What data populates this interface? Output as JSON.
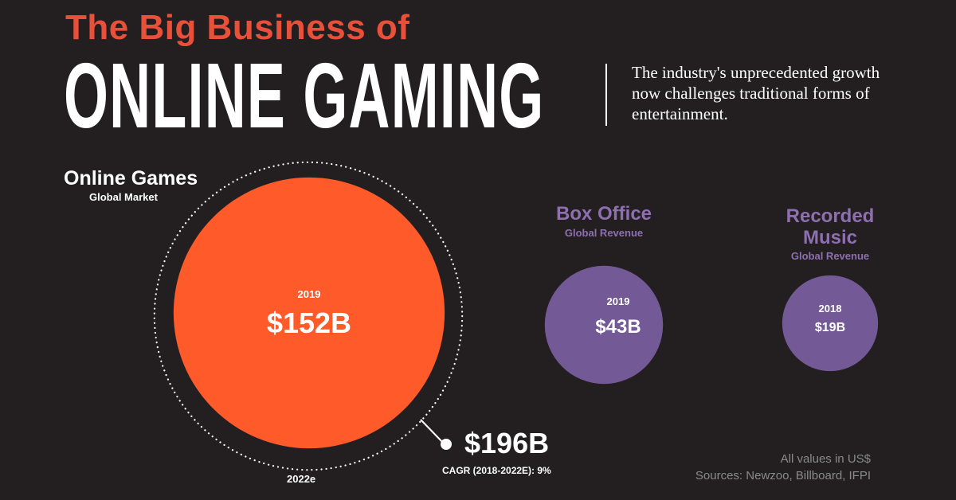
{
  "header": {
    "title_line1": "The Big Business of",
    "title_line2": "ONLINE GAMING",
    "subtitle": "The industry's unprecedented growth now challenges traditional forms of entertainment."
  },
  "colors": {
    "background": "#231f20",
    "orange": "#fe5a2a",
    "title_orange": "#e8503a",
    "purple": "#735a96",
    "purple_text": "#8e6fb0"
  },
  "chart_data": {
    "type": "scatter",
    "title": "The Big Business of ONLINE GAMING",
    "unit": "US$ billions",
    "series": [
      {
        "name": "Online Games",
        "subtitle": "Global Market",
        "year": "2019",
        "value": 152,
        "label": "$152B",
        "color": "#fe5a2a"
      },
      {
        "name": "Box Office",
        "subtitle": "Global Revenue",
        "year": "2019",
        "value": 43,
        "label": "$43B",
        "color": "#735a96"
      },
      {
        "name": "Recorded Music",
        "subtitle": "Global Revenue",
        "year": "2018",
        "value": 19,
        "label": "$19B",
        "color": "#735a96"
      }
    ],
    "projection": {
      "year": "2022e",
      "value": 196,
      "label": "$196B",
      "cagr": "CAGR (2018-2022E): 9%"
    }
  },
  "labels": {
    "box_office": "Box Office",
    "recorded_music_1": "Recorded",
    "recorded_music_2": "Music"
  },
  "footer": {
    "note": "All values in US$",
    "sources": "Sources: Newzoo, Billboard, IFPI"
  }
}
